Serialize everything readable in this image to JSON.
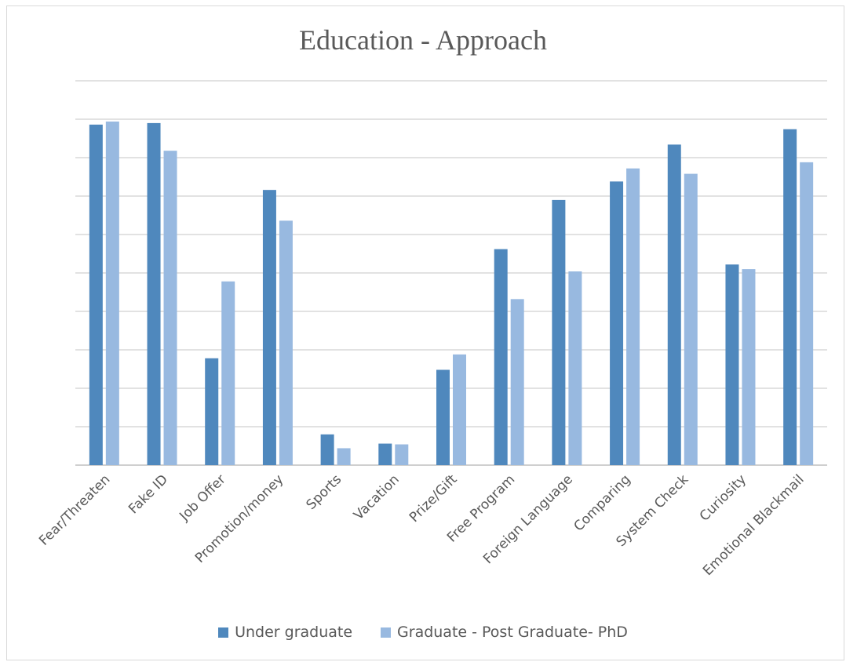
{
  "chart_data": {
    "type": "bar",
    "title": "Education - Approach",
    "xlabel": "",
    "ylabel": "",
    "ylim": [
      0,
      100
    ],
    "grid": true,
    "legend_position": "bottom",
    "categories": [
      "Fear/Threaten",
      "Fake ID",
      "Job Offer",
      "Promotion/money",
      "Sports",
      "Vacation",
      "Prize/Gift",
      "Free Program",
      "Foreign Language",
      "Comparing",
      "System Check",
      "Curiosity",
      "Emotional Blackmail"
    ],
    "series": [
      {
        "name": "Under graduate",
        "color": "#4f88bd",
        "values": [
          88.6,
          89.0,
          27.8,
          71.6,
          8.0,
          5.6,
          24.8,
          56.2,
          69.0,
          73.8,
          83.4,
          52.2,
          87.4
        ]
      },
      {
        "name": "Graduate - Post Graduate- PhD",
        "color": "#98b9e0",
        "values": [
          89.4,
          81.8,
          47.8,
          63.6,
          4.4,
          5.4,
          28.8,
          43.2,
          50.4,
          77.2,
          75.8,
          51.0,
          78.8
        ]
      }
    ]
  }
}
